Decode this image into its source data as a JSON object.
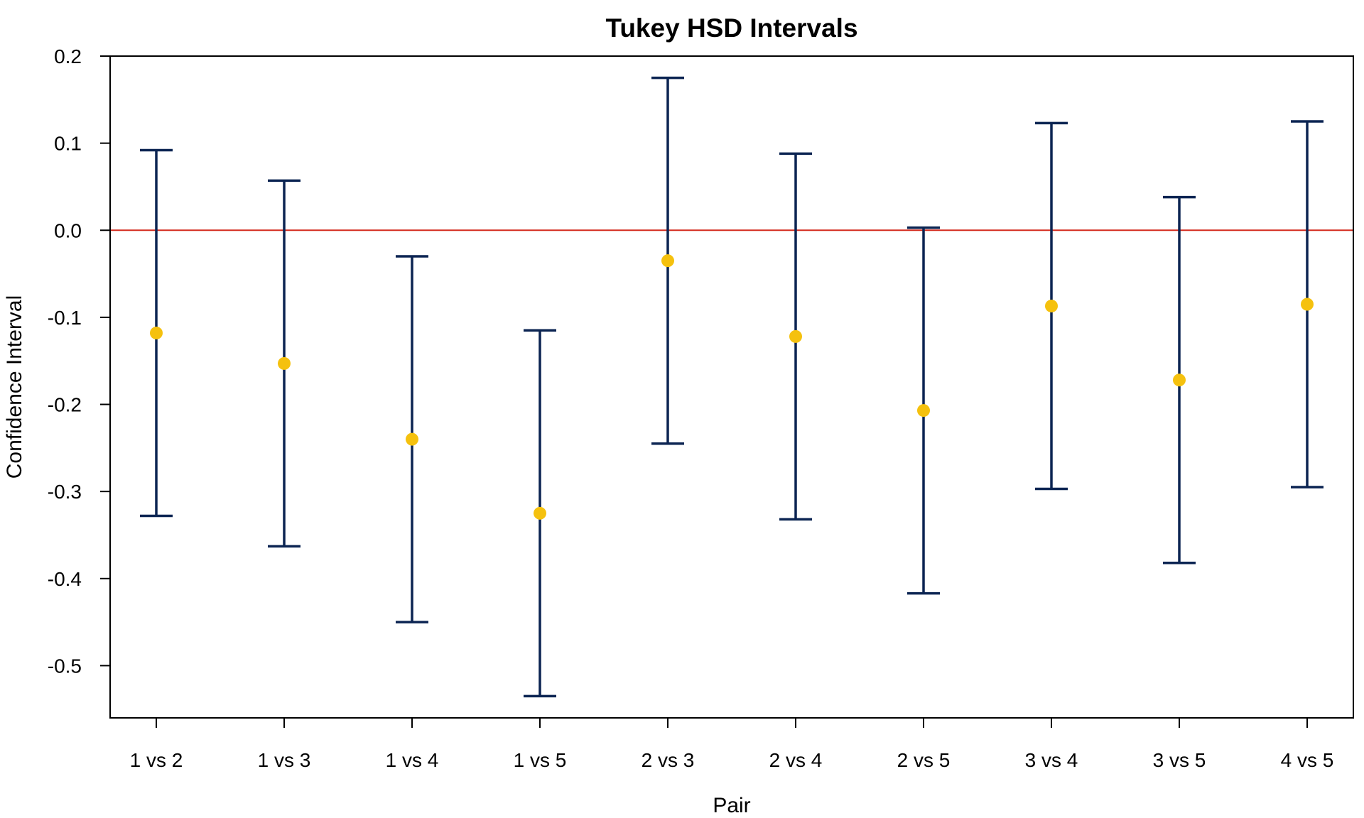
{
  "chart_data": {
    "type": "errorbar",
    "title": "Tukey HSD Intervals",
    "xlabel": "Pair",
    "ylabel": "Confidence Interval",
    "ylim": [
      -0.56,
      0.2
    ],
    "yticks": [
      0.2,
      0.1,
      0.0,
      -0.1,
      -0.2,
      -0.3,
      -0.4,
      -0.5
    ],
    "ytick_labels": [
      "0.2",
      "0.1",
      "0.0",
      "-0.1",
      "-0.2",
      "-0.3",
      "-0.4",
      "-0.5"
    ],
    "categories": [
      "1 vs 2",
      "1 vs 3",
      "1 vs 4",
      "1 vs 5",
      "2 vs 3",
      "2 vs 4",
      "2 vs 5",
      "3 vs 4",
      "3 vs 5",
      "4 vs 5"
    ],
    "estimate": [
      -0.118,
      -0.153,
      -0.24,
      -0.325,
      -0.035,
      -0.122,
      -0.207,
      -0.087,
      -0.172,
      -0.085
    ],
    "lower": [
      -0.328,
      -0.363,
      -0.45,
      -0.535,
      -0.245,
      -0.332,
      -0.417,
      -0.297,
      -0.382,
      -0.295
    ],
    "upper": [
      0.092,
      0.057,
      -0.03,
      -0.115,
      0.175,
      0.088,
      0.003,
      0.123,
      0.038,
      0.125
    ],
    "reference_line": 0.0,
    "grid": false,
    "colors": {
      "interval": "#0b2452",
      "estimate": "#f5c10e",
      "reference": "#d42a1e"
    }
  }
}
